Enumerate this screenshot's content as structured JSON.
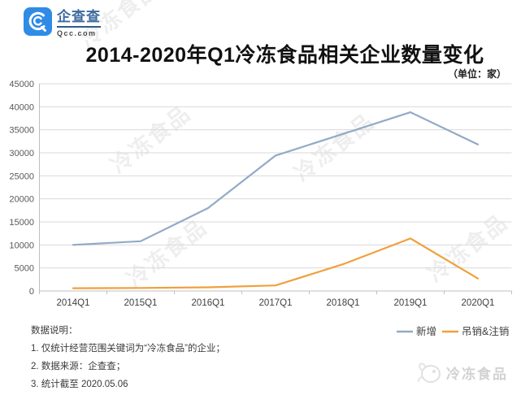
{
  "header": {
    "logo_name": "企查查",
    "logo_domain": "Qcc.com",
    "title": "2014-2020年Q1冷冻食品相关企业数量变化",
    "unit_label": "（单位：家）"
  },
  "chart_data": {
    "type": "line",
    "title": "2014-2020年Q1冷冻食品相关企业数量变化",
    "unit": "家",
    "categories": [
      "2014Q1",
      "2015Q1",
      "2016Q1",
      "2017Q1",
      "2018Q1",
      "2019Q1",
      "2020Q1"
    ],
    "series": [
      {
        "name": "新增",
        "color": "#92aac6",
        "values": [
          10000,
          10800,
          18000,
          29400,
          34100,
          38800,
          31800
        ]
      },
      {
        "name": "吊销&注销",
        "color": "#f0a03c",
        "values": [
          600,
          650,
          800,
          1200,
          5800,
          11400,
          2700
        ]
      }
    ],
    "ylim": [
      0,
      45000
    ],
    "ytick_step": 5000,
    "grid": true,
    "legend_position": "bottom-right",
    "axis_color": "#bfbfbf",
    "grid_color": "#d9d9d9",
    "tick_label_color": "#595959",
    "legend_text_color": "#404040"
  },
  "footer": {
    "notes": [
      "数据说明：",
      "1. 仅统计经营范围关键词为“冷冻食品”的企业；",
      "2. 数据来源：企查查；",
      "3. 统计截至 2020.05.06"
    ]
  },
  "watermark": {
    "text": "冷冻食品",
    "brand_text": "冷冻食品"
  }
}
